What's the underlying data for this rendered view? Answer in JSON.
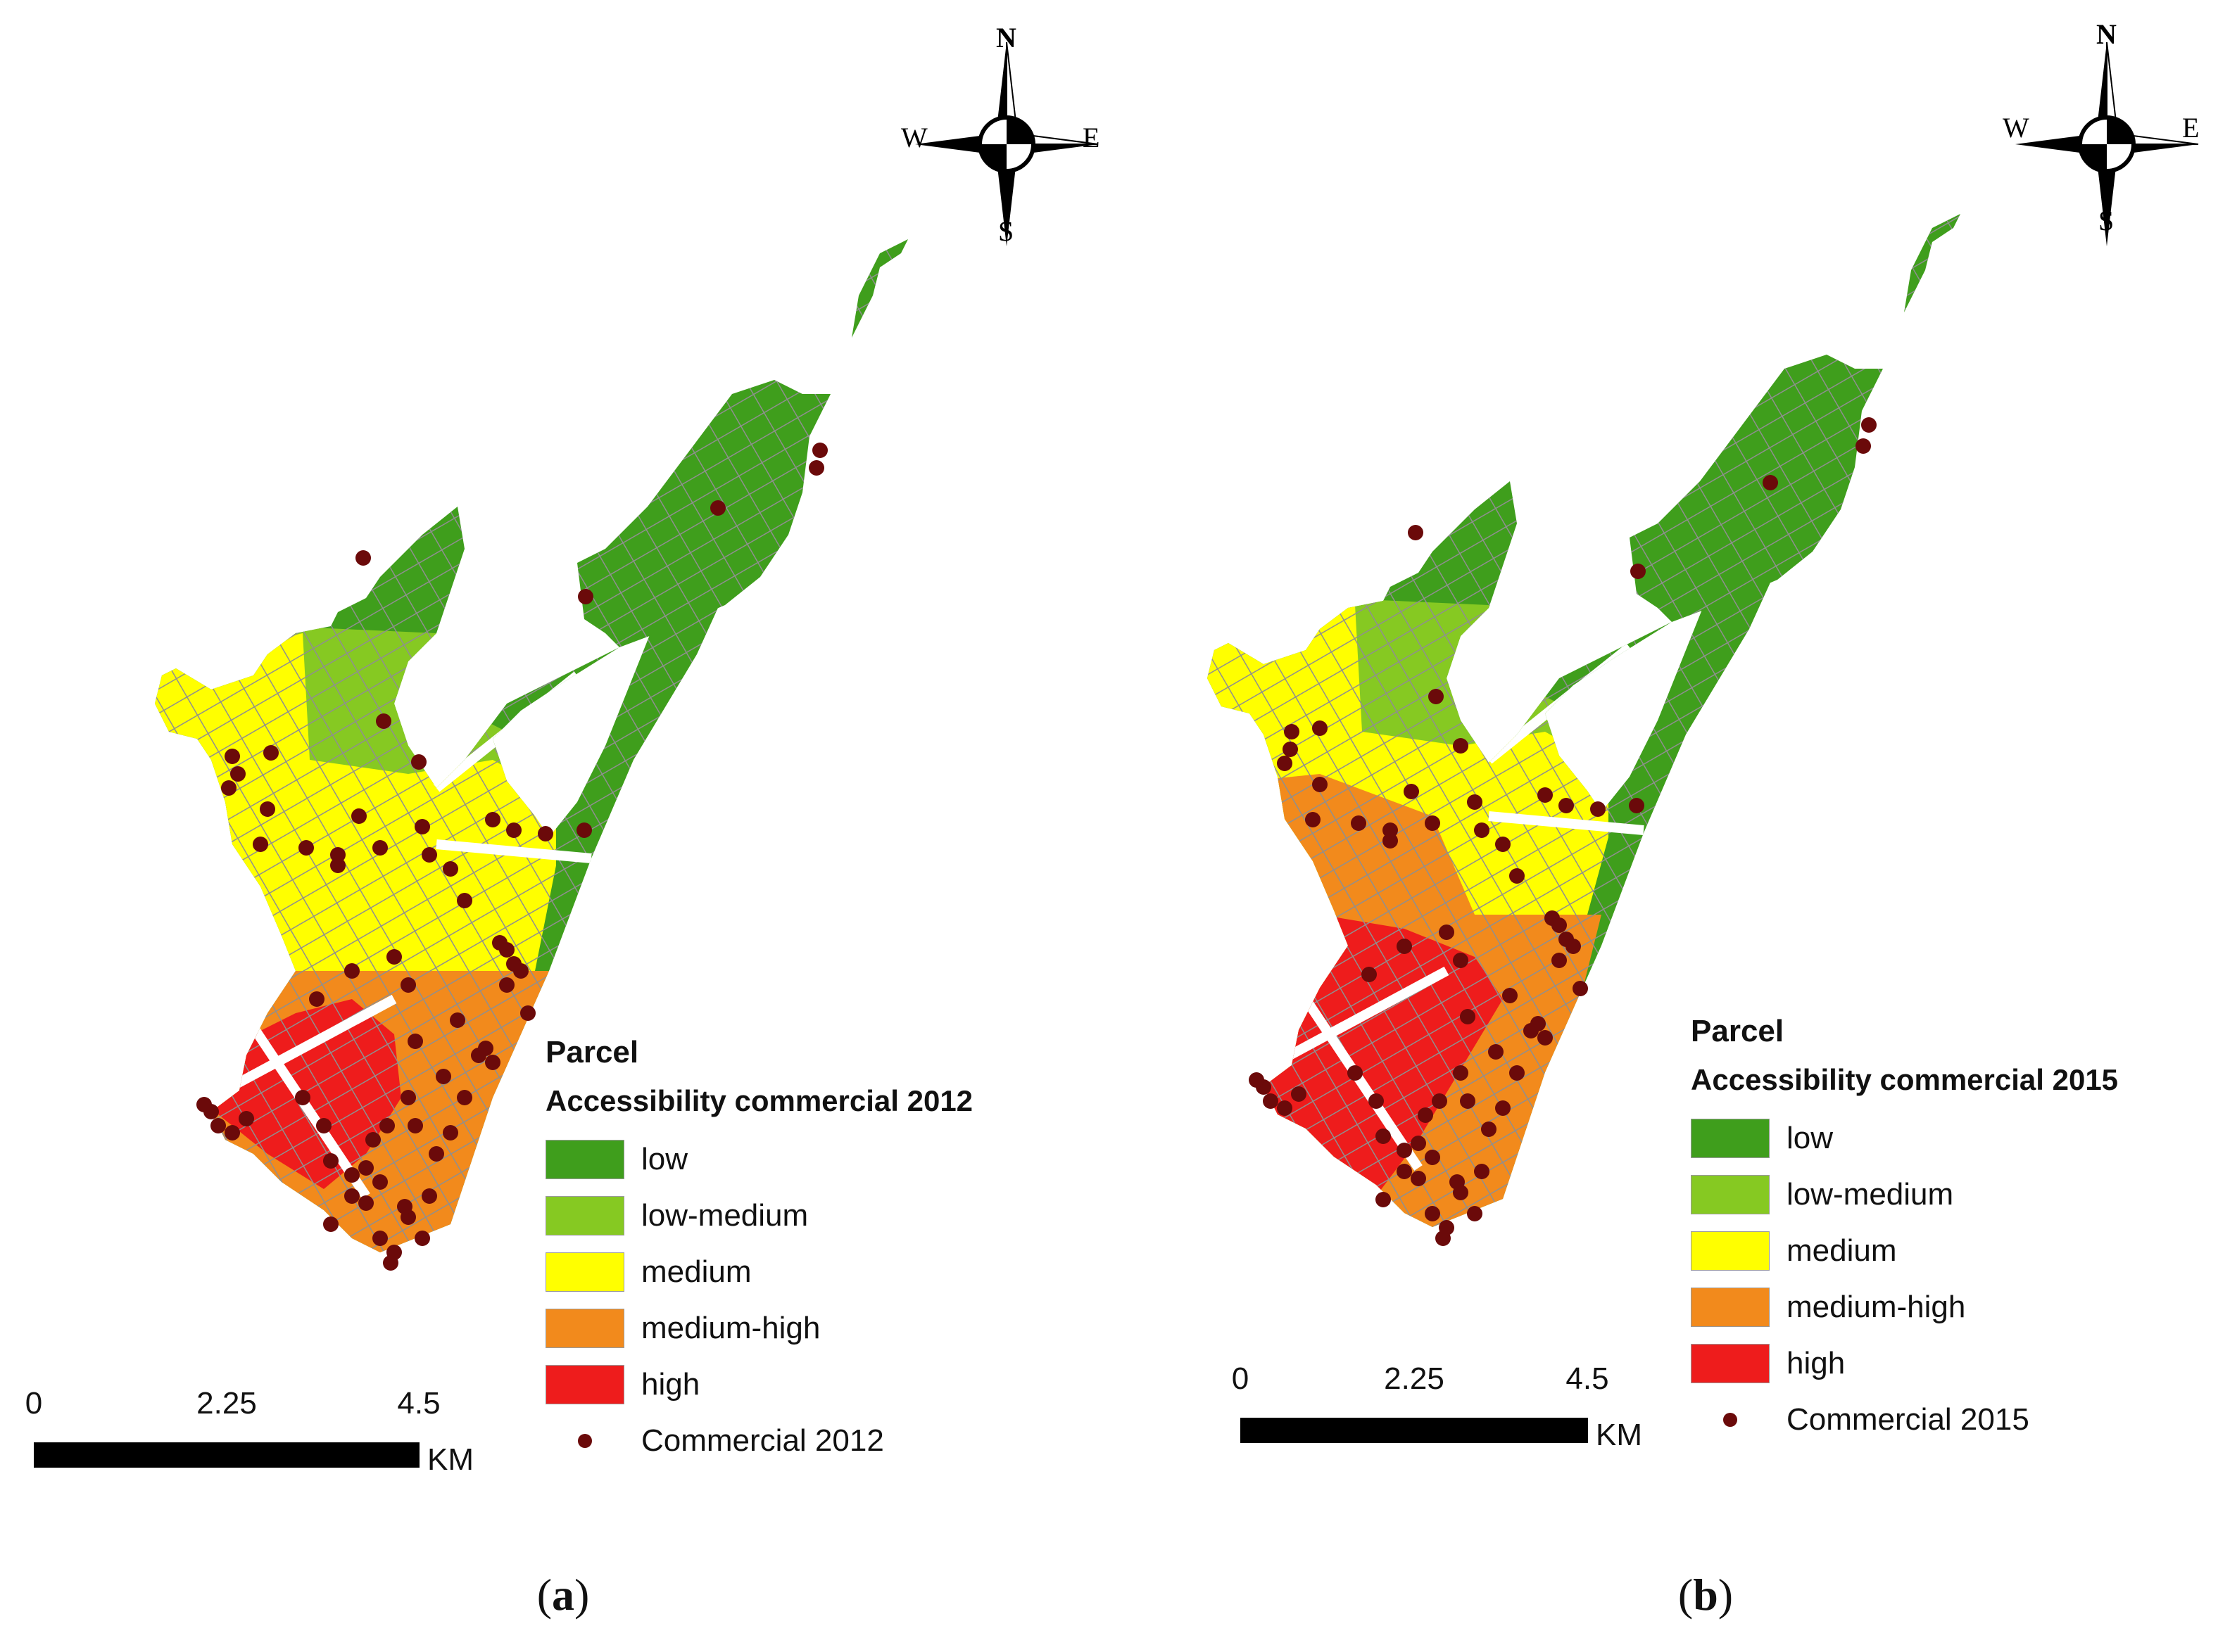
{
  "compass": {
    "n": "N",
    "s": "S",
    "e": "E",
    "w": "W"
  },
  "colors": {
    "low": "#3f9e1c",
    "low_medium": "#86c922",
    "medium": "#ffff00",
    "medium_high": "#f28a1c",
    "high": "#ee1c1c",
    "commercial": "#6b0a0a",
    "street": "#9a9a9a"
  },
  "panels": [
    {
      "label_letter": "a",
      "legend": {
        "title": "Parcel",
        "subtitle": "Accessibility commercial 2012",
        "classes": [
          "low",
          "low-medium",
          "medium",
          "medium-high",
          "high"
        ],
        "points_label": "Commercial 2012"
      },
      "scale": {
        "ticks": [
          "0",
          "2.25",
          "4.5"
        ],
        "unit": "KM"
      }
    },
    {
      "label_letter": "b",
      "legend": {
        "title": "Parcel",
        "subtitle": "Accessibility commercial 2015",
        "classes": [
          "low",
          "low-medium",
          "medium",
          "medium-high",
          "high"
        ],
        "points_label": "Commercial 2015"
      },
      "scale": {
        "ticks": [
          "0",
          "2.25",
          "4.5"
        ],
        "unit": "KM"
      }
    }
  ]
}
